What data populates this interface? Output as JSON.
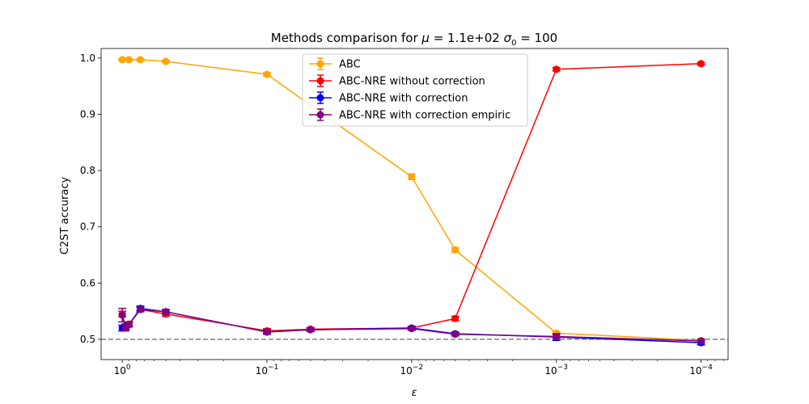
{
  "chart_data": {
    "type": "line",
    "title": "Methods comparison for μ = 1.1e+02 σ₀ = 100",
    "title_parts": [
      "Methods comparison for ",
      "μ",
      " =  1.1e+02 ",
      "σ",
      "0",
      " =  100"
    ],
    "xlabel": "ε",
    "ylabel": "C2ST accuracy",
    "x_scale": "log",
    "x_inverted": true,
    "xlim": [
      1.4,
      6.5e-05
    ],
    "ylim": [
      0.464,
      1.017
    ],
    "x_ticks": [
      {
        "value": 1,
        "base": "10",
        "exp": "0"
      },
      {
        "value": 0.1,
        "base": "10",
        "exp": "−1"
      },
      {
        "value": 0.01,
        "base": "10",
        "exp": "−2"
      },
      {
        "value": 0.001,
        "base": "10",
        "exp": "−3"
      },
      {
        "value": 0.0001,
        "base": "10",
        "exp": "−4"
      }
    ],
    "y_ticks": [
      "0.5",
      "0.6",
      "0.7",
      "0.8",
      "0.9",
      "1.0"
    ],
    "reference_line": {
      "y": 0.5,
      "style": "dashed",
      "color": "#808080"
    },
    "legend_position": "top-center",
    "series": [
      {
        "name": "ABC",
        "color": "#ffa500",
        "x": [
          1,
          0.9,
          0.75,
          0.5,
          0.1,
          0.01,
          0.005,
          0.001,
          0.0001
        ],
        "y": [
          0.997,
          0.997,
          0.997,
          0.994,
          0.971,
          0.789,
          0.659,
          0.511,
          0.498
        ],
        "err": [
          0.002,
          0.002,
          0.002,
          0.002,
          0.003,
          0.005,
          0.004,
          0.003,
          0.003
        ]
      },
      {
        "name": "ABC-NRE without correction",
        "color": "#ff0000",
        "x": [
          1,
          0.95,
          0.9,
          0.75,
          0.5,
          0.1,
          0.05,
          0.01,
          0.005,
          0.001,
          0.0001
        ],
        "y": [
          0.545,
          0.522,
          0.527,
          0.553,
          0.545,
          0.515,
          0.518,
          0.52,
          0.537,
          0.98,
          0.99
        ],
        "err": [
          0.005,
          0.005,
          0.004,
          0.004,
          0.004,
          0.004,
          0.003,
          0.003,
          0.004,
          0.003,
          0.002
        ]
      },
      {
        "name": "ABC-NRE with correction",
        "color": "#0000ff",
        "x": [
          1,
          0.95,
          0.9,
          0.75,
          0.5,
          0.1,
          0.05,
          0.01,
          0.005,
          0.001,
          0.0001
        ],
        "y": [
          0.52,
          0.523,
          0.526,
          0.555,
          0.549,
          0.513,
          0.517,
          0.52,
          0.51,
          0.504,
          0.494
        ],
        "err": [
          0.005,
          0.004,
          0.004,
          0.004,
          0.004,
          0.004,
          0.003,
          0.003,
          0.003,
          0.006,
          0.004
        ]
      },
      {
        "name": "ABC-NRE with correction empiric",
        "color": "#800080",
        "x": [
          1,
          0.95,
          0.9,
          0.75,
          0.5,
          0.1,
          0.05,
          0.01,
          0.005,
          0.001,
          0.0001
        ],
        "y": [
          0.543,
          0.52,
          0.526,
          0.553,
          0.549,
          0.513,
          0.517,
          0.519,
          0.509,
          0.505,
          0.497
        ],
        "err": [
          0.012,
          0.005,
          0.004,
          0.004,
          0.004,
          0.004,
          0.003,
          0.003,
          0.003,
          0.004,
          0.003
        ]
      }
    ]
  }
}
